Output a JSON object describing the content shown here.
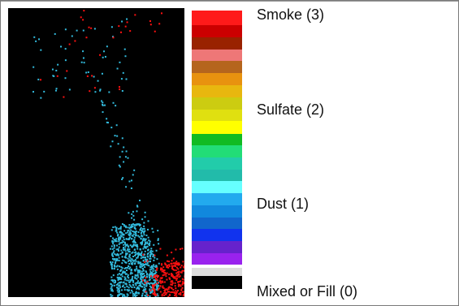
{
  "legend": {
    "labels": [
      {
        "text": "Smoke (3)",
        "key": "smoke"
      },
      {
        "text": "Sulfate (2)",
        "key": "sulfate"
      },
      {
        "text": "Dust (1)",
        "key": "dust"
      },
      {
        "text": "Mixed or Fill (0)",
        "key": "mixed"
      }
    ],
    "swatches": [
      {
        "color": "#ff1a1a"
      },
      {
        "color": "#cc0000"
      },
      {
        "color": "#992200"
      },
      {
        "color": "#ee7777"
      },
      {
        "color": "#b5651d"
      },
      {
        "color": "#e8920f"
      },
      {
        "color": "#e8b70f"
      },
      {
        "color": "#cccc11"
      },
      {
        "color": "#e0e010"
      },
      {
        "color": "#ffff00"
      },
      {
        "color": "#11bb22"
      },
      {
        "color": "#22dd77"
      },
      {
        "color": "#22ccaa"
      },
      {
        "color": "#22bbaa"
      },
      {
        "color": "#66ffff"
      },
      {
        "color": "#22aaee"
      },
      {
        "color": "#1188dd"
      },
      {
        "color": "#1166cc"
      },
      {
        "color": "#1133ee"
      },
      {
        "color": "#6622cc"
      },
      {
        "color": "#9922ee"
      },
      {
        "color": "#ffffff"
      },
      {
        "color": "#dddddd"
      },
      {
        "color": "#000000"
      }
    ]
  },
  "map": {
    "background": "#000000",
    "colors": {
      "dust": "#33bbdd",
      "smoke": "#ff1111"
    }
  }
}
